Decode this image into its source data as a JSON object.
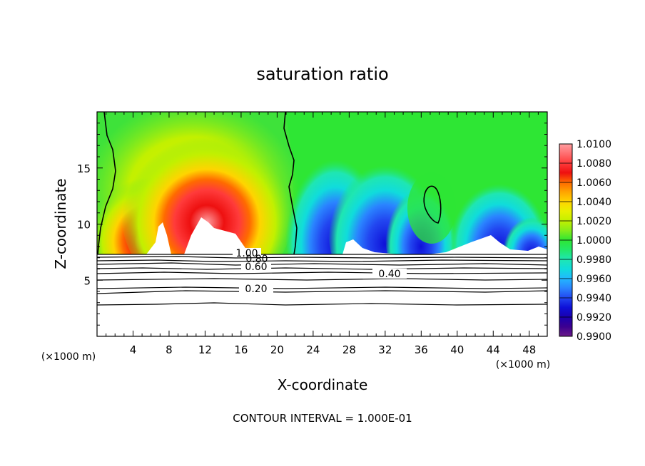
{
  "chart_data": {
    "type": "heatmap",
    "title": "saturation ratio",
    "xlabel": "X-coordinate",
    "ylabel": "Z-coordinate",
    "x_unit": "(×1000 m)",
    "y_unit": "(×1000 m)",
    "xlim": [
      0,
      50
    ],
    "ylim": [
      0,
      20
    ],
    "x_ticks": [
      4,
      8,
      12,
      16,
      20,
      24,
      28,
      32,
      36,
      40,
      44,
      48
    ],
    "y_ticks": [
      5,
      10,
      15
    ],
    "footer": "CONTOUR INTERVAL = 1.000E-01",
    "colorbar": {
      "levels": [
        "1.0100",
        "1.0080",
        "1.0060",
        "1.0040",
        "1.0020",
        "1.0000",
        "0.9980",
        "0.9960",
        "0.9940",
        "0.9920",
        "0.9900"
      ],
      "colors": [
        "#ff9ea0",
        "#ff3b3b",
        "#ee1010",
        "#ff6a00",
        "#ffa500",
        "#ffd400",
        "#e8f000",
        "#c2f000",
        "#86ec1a",
        "#2ee634",
        "#22e868",
        "#1fe6b2",
        "#10dcdc",
        "#22b8ff",
        "#2a84ff",
        "#2246f0",
        "#0e10d8",
        "#1a00b0",
        "#3c0090",
        "#6a1a8a"
      ]
    },
    "contour_labels": [
      "1.00",
      "0.80",
      "0.60",
      "0.40",
      "0.20"
    ]
  }
}
